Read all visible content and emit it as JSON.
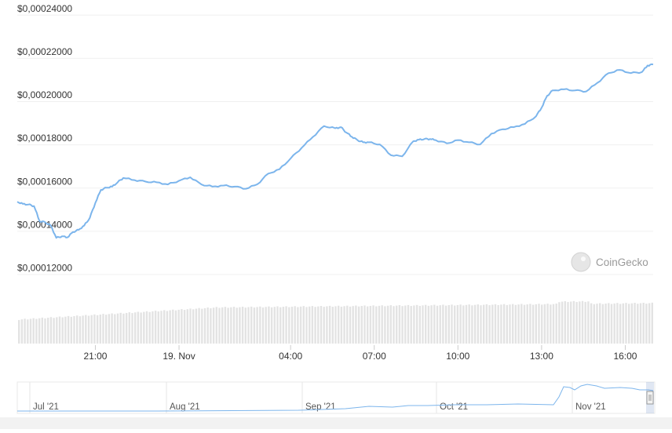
{
  "chart_data": {
    "type": "line",
    "y_ticks": [
      "$0,00012000",
      "$0,00014000",
      "$0,00016000",
      "$0,00018000",
      "$0,00020000",
      "$0,00022000",
      "$0,00024000"
    ],
    "y_tick_values": [
      0.00012,
      0.00014,
      0.00016,
      0.00018,
      0.0002,
      0.00022,
      0.00024
    ],
    "ylim": [
      0.000118,
      0.000245
    ],
    "x_ticks": [
      "21:00",
      "19. Nov",
      "04:00",
      "07:00",
      "10:00",
      "13:00",
      "16:00"
    ],
    "x_tick_hours": [
      21,
      24,
      28,
      31,
      34,
      37,
      40
    ],
    "xlim_hours": [
      18.2,
      41.0
    ],
    "grid": true,
    "series": [
      {
        "color": "#7cb5ec",
        "x_hours": [
          18.2,
          18.4,
          18.6,
          18.8,
          19.0,
          19.2,
          19.4,
          19.6,
          19.8,
          20.0,
          20.2,
          20.4,
          20.6,
          20.8,
          21.0,
          21.2,
          21.4,
          21.6,
          21.8,
          22.0,
          22.4,
          22.8,
          23.2,
          23.6,
          24.0,
          24.4,
          24.8,
          25.2,
          25.6,
          26.0,
          26.4,
          26.8,
          27.2,
          27.6,
          28.0,
          28.4,
          28.8,
          29.2,
          29.6,
          29.8,
          30.0,
          30.2,
          30.4,
          30.6,
          30.8,
          31.2,
          31.6,
          32.0,
          32.4,
          32.6,
          32.8,
          33.0,
          33.2,
          33.6,
          34.0,
          34.4,
          34.8,
          35.2,
          35.6,
          36.0,
          36.4,
          36.8,
          37.0,
          37.2,
          37.4,
          37.8,
          38.2,
          38.6,
          39.0,
          39.4,
          39.8,
          40.2,
          40.6,
          40.8,
          41.0
        ],
        "values": [
          0.0001535,
          0.0001525,
          0.0001522,
          0.0001515,
          0.0001445,
          0.000144,
          0.0001425,
          0.0001368,
          0.0001375,
          0.000137,
          0.0001395,
          0.0001405,
          0.0001425,
          0.000146,
          0.000153,
          0.000159,
          0.00016,
          0.0001605,
          0.0001625,
          0.0001645,
          0.0001635,
          0.0001628,
          0.0001625,
          0.0001615,
          0.0001632,
          0.0001648,
          0.0001615,
          0.0001605,
          0.000161,
          0.0001605,
          0.0001595,
          0.0001615,
          0.0001665,
          0.0001685,
          0.0001735,
          0.0001785,
          0.0001835,
          0.0001885,
          0.0001875,
          0.000188,
          0.0001855,
          0.0001835,
          0.000182,
          0.000181,
          0.000181,
          0.00018,
          0.000175,
          0.0001745,
          0.0001815,
          0.0001822,
          0.0001825,
          0.0001825,
          0.000182,
          0.0001805,
          0.000182,
          0.000181,
          0.00018,
          0.000185,
          0.000187,
          0.000188,
          0.0001895,
          0.000193,
          0.000197,
          0.0002025,
          0.000205,
          0.0002055,
          0.000205,
          0.0002045,
          0.0002085,
          0.000213,
          0.0002145,
          0.000213,
          0.0002135,
          0.0002165,
          0.000217
        ]
      }
    ],
    "navigator": {
      "x_ticks": [
        "Jul '21",
        "Aug '21",
        "Sep '21",
        "Oct '21",
        "Nov '21"
      ]
    },
    "watermark": "CoinGecko"
  }
}
